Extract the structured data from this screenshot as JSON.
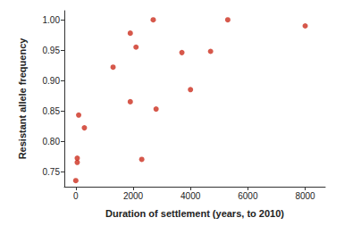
{
  "chart_data": {
    "type": "scatter",
    "x_label": "Duration of settlement (years, to 2010)",
    "y_label": "Resistant allele frequency",
    "x": [
      0,
      50,
      50,
      100,
      300,
      1300,
      1900,
      1900,
      2100,
      2300,
      2700,
      2800,
      3700,
      4000,
      4700,
      5300,
      8000
    ],
    "values": [
      0.735,
      0.765,
      0.772,
      0.843,
      0.822,
      0.922,
      0.865,
      0.978,
      0.955,
      0.77,
      1.0,
      0.853,
      0.946,
      0.885,
      0.948,
      1.0,
      0.99
    ],
    "color": "#cc2e1e",
    "marker": "circle",
    "xlim": [
      -400,
      8700
    ],
    "xticks": [
      0,
      2000,
      4000,
      6000,
      8000
    ],
    "ylim": [
      0.725,
      1.015
    ],
    "yticks": [
      {
        "value": 0.75,
        "label": "0.75"
      },
      {
        "value": 0.8,
        "label": "0.80"
      },
      {
        "value": 0.85,
        "label": "0.85"
      },
      {
        "value": 0.9,
        "label": "0.90"
      },
      {
        "value": 0.95,
        "label": "0.95"
      },
      {
        "value": 1.0,
        "label": "1.00"
      }
    ],
    "grid": false
  }
}
